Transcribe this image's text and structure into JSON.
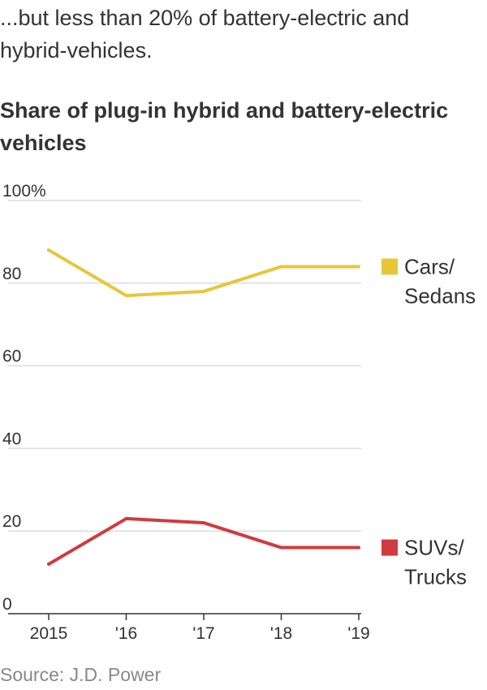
{
  "subtitle": "...but less than 20% of battery-electric and hybrid-vehicles.",
  "title": "Share of plug-in hybrid and battery-electric vehicles",
  "source": "Source: J.D. Power",
  "colors": {
    "cars": "#e8c63a",
    "suvs": "#d13a3e",
    "grid": "#dddddd",
    "axis": "#333333"
  },
  "chart_data": {
    "type": "line",
    "title": "Share of plug-in hybrid and battery-electric vehicles",
    "x": [
      "2015",
      "'16",
      "'17",
      "'18",
      "'19"
    ],
    "ylim": [
      0,
      100
    ],
    "yticks": [
      0,
      20,
      40,
      60,
      80,
      100
    ],
    "ytick_labels": [
      "0",
      "20",
      "40",
      "60",
      "80",
      "100%"
    ],
    "grid": true,
    "legend": "right, inline with series",
    "series": [
      {
        "name": "Cars/ Sedans",
        "label_lines": [
          "Cars/",
          "Sedans"
        ],
        "color": "#e8c63a",
        "values": [
          88,
          77,
          78,
          84,
          84
        ]
      },
      {
        "name": "SUVs/ Trucks",
        "label_lines": [
          "SUVs/",
          "Trucks"
        ],
        "color": "#d13a3e",
        "values": [
          12,
          23,
          22,
          16,
          16
        ]
      }
    ]
  }
}
